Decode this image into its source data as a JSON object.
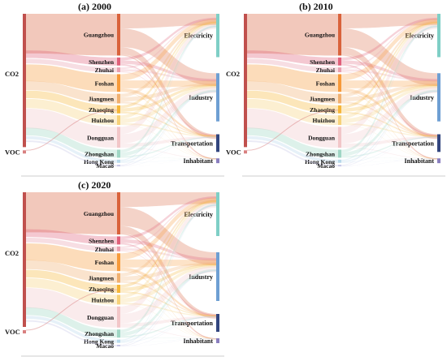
{
  "panels": [
    {
      "label": "(a)",
      "year": "2000"
    },
    {
      "label": "(b)",
      "year": "2010"
    },
    {
      "label": "(c)",
      "year": "2020"
    }
  ],
  "pollutants": [
    "CO2",
    "VOC"
  ],
  "cities": [
    "Guangzhou",
    "Shenzhen",
    "Zhuhai",
    "Foshan",
    "Jiangmen",
    "Zhaoqing",
    "Huizhou",
    "Dongguan",
    "Zhongshan",
    "Hong Kong",
    "Macao"
  ],
  "sectors": [
    "Electricity",
    "Industry",
    "Transportation",
    "Inhabitant"
  ],
  "colors": {
    "CO2": "#c0504d",
    "VOC": "#d98080",
    "Guangzhou": "#d9623b",
    "Shenzhen": "#e0607a",
    "Zhuhai": "#e8a0b0",
    "Foshan": "#f79a3a",
    "Jiangmen": "#f0b070",
    "Zhaoqing": "#f5b63a",
    "Huizhou": "#f6d27a",
    "Dongguan": "#f2c6c8",
    "Zhongshan": "#9fd6c4",
    "Hong Kong": "#b7d8ea",
    "Macao": "#c6c6e6",
    "Electricity": "#7fcfc6",
    "Industry": "#6e9fd3",
    "Transportation": "#33467f",
    "Inhabitant": "#8a7fbf"
  }
}
